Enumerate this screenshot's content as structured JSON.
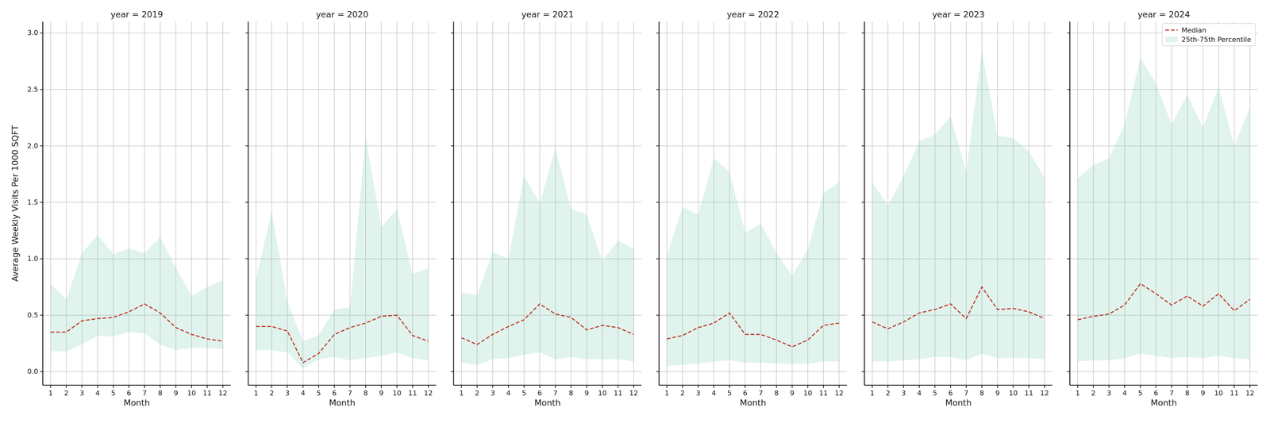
{
  "chart_data": [
    {
      "type": "line",
      "title": "year = 2019",
      "x_label": "Month",
      "y_label": "Average Weekly Visits Per 1000 SQFT",
      "x": [
        1,
        2,
        3,
        4,
        5,
        6,
        7,
        8,
        9,
        10,
        11,
        12
      ],
      "xlim": [
        0.5,
        12.5
      ],
      "xticks": [
        1,
        2,
        3,
        4,
        5,
        6,
        7,
        8,
        9,
        10,
        11,
        12
      ],
      "ylim": [
        -0.12,
        3.1
      ],
      "yticks": [
        {
          "value": 0,
          "label": "0.0"
        },
        0.5,
        {
          "value": 1,
          "label": "1.0"
        },
        1.5,
        {
          "value": 2,
          "label": "2.0"
        },
        2.5,
        {
          "value": 3,
          "label": "3.0"
        }
      ],
      "grid": true,
      "series": [
        {
          "name": "Median",
          "type": "line",
          "line_style": "dashed",
          "color": "#c0392b",
          "values": [
            0.35,
            0.35,
            0.45,
            0.47,
            0.48,
            0.53,
            0.6,
            0.52,
            0.39,
            0.33,
            0.29,
            0.27
          ]
        },
        {
          "name": "25th-75th Percentile",
          "type": "area",
          "color": "#66c2a5",
          "low": [
            0.18,
            0.18,
            0.24,
            0.32,
            0.31,
            0.35,
            0.34,
            0.24,
            0.19,
            0.21,
            0.21,
            0.2
          ],
          "high": [
            0.78,
            0.64,
            1.05,
            1.21,
            1.04,
            1.09,
            1.05,
            1.19,
            0.92,
            0.67,
            0.75,
            0.81
          ]
        }
      ]
    },
    {
      "type": "line",
      "title": "year = 2020",
      "x_label": "Month",
      "tick_labels": "x",
      "x": [
        1,
        2,
        3,
        4,
        5,
        6,
        7,
        8,
        9,
        10,
        11,
        12
      ],
      "xlim": [
        0.5,
        12.5
      ],
      "xticks": [
        1,
        2,
        3,
        4,
        5,
        6,
        7,
        8,
        9,
        10,
        11,
        12
      ],
      "ylim": [
        -0.12,
        3.1
      ],
      "yticks": [
        {
          "value": 0,
          "label": "0.0"
        },
        0.5,
        {
          "value": 1,
          "label": "1.0"
        },
        1.5,
        {
          "value": 2,
          "label": "2.0"
        },
        2.5,
        {
          "value": 3,
          "label": "3.0"
        }
      ],
      "grid": true,
      "series": [
        {
          "name": "Median",
          "type": "line",
          "line_style": "dashed",
          "color": "#c0392b",
          "values": [
            0.4,
            0.4,
            0.36,
            0.08,
            0.16,
            0.33,
            0.39,
            0.43,
            0.49,
            0.5,
            0.32,
            0.27
          ]
        },
        {
          "name": "25th-75th Percentile",
          "type": "area",
          "color": "#66c2a5",
          "low": [
            0.19,
            0.19,
            0.17,
            0.03,
            0.11,
            0.13,
            0.1,
            0.12,
            0.14,
            0.17,
            0.12,
            0.1
          ],
          "high": [
            0.82,
            1.42,
            0.62,
            0.27,
            0.32,
            0.55,
            0.57,
            2.08,
            1.28,
            1.44,
            0.86,
            0.92
          ]
        }
      ]
    },
    {
      "type": "line",
      "title": "year = 2021",
      "x_label": "Month",
      "tick_labels": "x",
      "x": [
        1,
        2,
        3,
        4,
        5,
        6,
        7,
        8,
        9,
        10,
        11,
        12
      ],
      "xlim": [
        0.5,
        12.5
      ],
      "xticks": [
        1,
        2,
        3,
        4,
        5,
        6,
        7,
        8,
        9,
        10,
        11,
        12
      ],
      "ylim": [
        -0.12,
        3.1
      ],
      "yticks": [
        {
          "value": 0,
          "label": "0.0"
        },
        0.5,
        {
          "value": 1,
          "label": "1.0"
        },
        1.5,
        {
          "value": 2,
          "label": "2.0"
        },
        2.5,
        {
          "value": 3,
          "label": "3.0"
        }
      ],
      "grid": true,
      "series": [
        {
          "name": "Median",
          "type": "line",
          "line_style": "dashed",
          "color": "#c0392b",
          "values": [
            0.3,
            0.24,
            0.33,
            0.4,
            0.46,
            0.6,
            0.51,
            0.48,
            0.37,
            0.41,
            0.39,
            0.33
          ]
        },
        {
          "name": "25th-75th Percentile",
          "type": "area",
          "color": "#66c2a5",
          "low": [
            0.08,
            0.06,
            0.11,
            0.12,
            0.15,
            0.17,
            0.11,
            0.13,
            0.11,
            0.11,
            0.11,
            0.09
          ],
          "high": [
            0.7,
            0.68,
            1.06,
            1.0,
            1.74,
            1.49,
            1.98,
            1.44,
            1.39,
            0.98,
            1.16,
            1.09
          ]
        }
      ]
    },
    {
      "type": "line",
      "title": "year = 2022",
      "x_label": "Month",
      "tick_labels": "x",
      "x": [
        1,
        2,
        3,
        4,
        5,
        6,
        7,
        8,
        9,
        10,
        11,
        12
      ],
      "xlim": [
        0.5,
        12.5
      ],
      "xticks": [
        1,
        2,
        3,
        4,
        5,
        6,
        7,
        8,
        9,
        10,
        11,
        12
      ],
      "ylim": [
        -0.12,
        3.1
      ],
      "yticks": [
        {
          "value": 0,
          "label": "0.0"
        },
        0.5,
        {
          "value": 1,
          "label": "1.0"
        },
        1.5,
        {
          "value": 2,
          "label": "2.0"
        },
        2.5,
        {
          "value": 3,
          "label": "3.0"
        }
      ],
      "grid": true,
      "series": [
        {
          "name": "Median",
          "type": "line",
          "line_style": "dashed",
          "color": "#c0392b",
          "values": [
            0.29,
            0.32,
            0.39,
            0.43,
            0.52,
            0.33,
            0.33,
            0.28,
            0.22,
            0.28,
            0.41,
            0.43
          ]
        },
        {
          "name": "25th-75th Percentile",
          "type": "area",
          "color": "#66c2a5",
          "low": [
            0.05,
            0.06,
            0.07,
            0.09,
            0.1,
            0.08,
            0.08,
            0.07,
            0.07,
            0.07,
            0.09,
            0.09
          ],
          "high": [
            1.03,
            1.46,
            1.39,
            1.89,
            1.77,
            1.23,
            1.31,
            1.05,
            0.85,
            1.08,
            1.58,
            1.68
          ]
        }
      ]
    },
    {
      "type": "line",
      "title": "year = 2023",
      "x_label": "Month",
      "tick_labels": "x",
      "x": [
        1,
        2,
        3,
        4,
        5,
        6,
        7,
        8,
        9,
        10,
        11,
        12
      ],
      "xlim": [
        0.5,
        12.5
      ],
      "xticks": [
        1,
        2,
        3,
        4,
        5,
        6,
        7,
        8,
        9,
        10,
        11,
        12
      ],
      "ylim": [
        -0.12,
        3.1
      ],
      "yticks": [
        {
          "value": 0,
          "label": "0.0"
        },
        0.5,
        {
          "value": 1,
          "label": "1.0"
        },
        1.5,
        {
          "value": 2,
          "label": "2.0"
        },
        2.5,
        {
          "value": 3,
          "label": "3.0"
        }
      ],
      "grid": true,
      "series": [
        {
          "name": "Median",
          "type": "line",
          "line_style": "dashed",
          "color": "#c0392b",
          "values": [
            0.44,
            0.38,
            0.44,
            0.52,
            0.55,
            0.6,
            0.47,
            0.75,
            0.55,
            0.56,
            0.53,
            0.47
          ]
        },
        {
          "name": "25th-75th Percentile",
          "type": "area",
          "color": "#66c2a5",
          "low": [
            0.09,
            0.09,
            0.1,
            0.11,
            0.13,
            0.13,
            0.1,
            0.16,
            0.12,
            0.12,
            0.12,
            0.11
          ],
          "high": [
            1.68,
            1.47,
            1.73,
            2.04,
            2.1,
            2.26,
            1.77,
            2.84,
            2.09,
            2.07,
            1.95,
            1.72
          ]
        }
      ]
    },
    {
      "type": "line",
      "title": "year = 2024",
      "x_label": "Month",
      "tick_labels": "x",
      "legend": "upper right",
      "x": [
        1,
        2,
        3,
        4,
        5,
        6,
        7,
        8,
        9,
        10,
        11,
        12
      ],
      "xlim": [
        0.5,
        12.5
      ],
      "xticks": [
        1,
        2,
        3,
        4,
        5,
        6,
        7,
        8,
        9,
        10,
        11,
        12
      ],
      "ylim": [
        -0.12,
        3.1
      ],
      "yticks": [
        {
          "value": 0,
          "label": "0.0"
        },
        0.5,
        {
          "value": 1,
          "label": "1.0"
        },
        1.5,
        {
          "value": 2,
          "label": "2.0"
        },
        2.5,
        {
          "value": 3,
          "label": "3.0"
        }
      ],
      "grid": true,
      "series": [
        {
          "name": "Median",
          "type": "line",
          "line_style": "dashed",
          "color": "#c0392b",
          "values": [
            0.46,
            0.49,
            0.51,
            0.59,
            0.78,
            0.69,
            0.59,
            0.67,
            0.58,
            0.69,
            0.54,
            0.64
          ]
        },
        {
          "name": "25th-75th Percentile",
          "type": "area",
          "color": "#66c2a5",
          "low": [
            0.09,
            0.1,
            0.1,
            0.12,
            0.16,
            0.14,
            0.12,
            0.13,
            0.12,
            0.14,
            0.12,
            0.11
          ],
          "high": [
            1.71,
            1.83,
            1.89,
            2.19,
            2.78,
            2.55,
            2.19,
            2.45,
            2.16,
            2.52,
            2.0,
            2.34
          ]
        }
      ]
    }
  ]
}
